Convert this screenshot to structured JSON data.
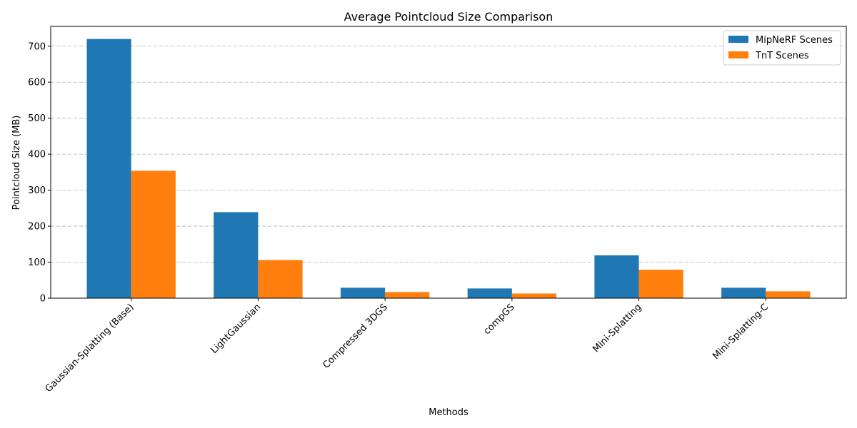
{
  "chart_data": {
    "type": "bar",
    "title": "Average Pointcloud Size Comparison",
    "xlabel": "Methods",
    "ylabel": "Pointcloud Size (MB)",
    "ylim": [
      0,
      755
    ],
    "yticks": [
      0,
      100,
      200,
      300,
      400,
      500,
      600,
      700
    ],
    "grid": "y-dashed",
    "legend_position": "top-right",
    "categories": [
      "Gaussian-Splatting (Base)",
      "LightGaussian",
      "Compressed 3DGS",
      "compGS",
      "Mini-Splatting",
      "Mini-Splatting-C"
    ],
    "series": [
      {
        "name": "MipNeRF Scenes",
        "color": "#1f77b4",
        "values": [
          720,
          239,
          29,
          27,
          119,
          29
        ]
      },
      {
        "name": "TnT Scenes",
        "color": "#ff7f0e",
        "values": [
          354,
          106,
          17,
          13,
          79,
          19
        ]
      }
    ]
  }
}
